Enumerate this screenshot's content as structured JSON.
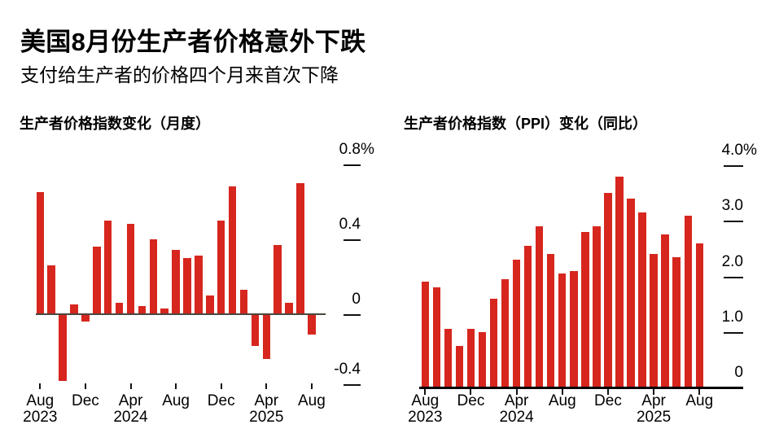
{
  "header": {
    "title": "美国8月份生产者价格意外下跌",
    "subtitle": "支付给生产者的价格四个月来首次下降"
  },
  "colors": {
    "bar": "#d6261e",
    "monthly_zero_axis": "#4a463f",
    "yoy_baseline": "#000000",
    "tick": "#111111",
    "text": "#000000",
    "background": "#ffffff"
  },
  "chart_data": [
    {
      "type": "bar",
      "title": "生产者价格指数变化（月度）",
      "unit": "%",
      "categories": [
        "Aug 2023",
        "Sep 2023",
        "Oct 2023",
        "Nov 2023",
        "Dec 2023",
        "Jan 2024",
        "Feb 2024",
        "Mar 2024",
        "Apr 2024",
        "May 2024",
        "Jun 2024",
        "Jul 2024",
        "Aug 2024",
        "Sep 2024",
        "Oct 2024",
        "Nov 2024",
        "Dec 2024",
        "Jan 2025",
        "Feb 2025",
        "Mar 2025",
        "Apr 2025",
        "May 2025",
        "Jun 2025",
        "Jul 2025",
        "Aug 2025"
      ],
      "values": [
        0.65,
        0.26,
        -0.36,
        0.05,
        -0.04,
        0.36,
        0.5,
        0.06,
        0.48,
        0.04,
        0.4,
        0.03,
        0.34,
        0.3,
        0.31,
        0.1,
        0.5,
        0.68,
        0.13,
        -0.17,
        -0.24,
        0.37,
        0.06,
        0.7,
        -0.11
      ],
      "ylim": [
        -0.5,
        0.9
      ],
      "grid": false,
      "legend": "none",
      "y_ticks": [
        {
          "label": "0.8%",
          "value": 0.8
        },
        {
          "label": "0.4",
          "value": 0.4
        },
        {
          "label": "0",
          "value": 0
        },
        {
          "label": "-0.4",
          "value": -0.4
        }
      ],
      "x_ticks": [
        {
          "index": 0,
          "month": "Aug",
          "year": "2023"
        },
        {
          "index": 4,
          "month": "Dec"
        },
        {
          "index": 8,
          "month": "Apr",
          "year": "2024"
        },
        {
          "index": 12,
          "month": "Aug"
        },
        {
          "index": 16,
          "month": "Dec"
        },
        {
          "index": 20,
          "month": "Apr",
          "year": "2025"
        },
        {
          "index": 24,
          "month": "Aug"
        }
      ]
    },
    {
      "type": "bar",
      "title": "生产者价格指数（PPI）变化（同比）",
      "unit": "%",
      "categories": [
        "Aug 2023",
        "Sep 2023",
        "Oct 2023",
        "Nov 2023",
        "Dec 2023",
        "Jan 2024",
        "Feb 2024",
        "Mar 2024",
        "Apr 2024",
        "May 2024",
        "Jun 2024",
        "Jul 2024",
        "Aug 2024",
        "Sep 2024",
        "Oct 2024",
        "Nov 2024",
        "Dec 2024",
        "Jan 2025",
        "Feb 2025",
        "Mar 2025",
        "Apr 2025",
        "May 2025",
        "Jun 2025",
        "Jul 2025",
        "Aug 2025"
      ],
      "values": [
        1.9,
        1.8,
        1.05,
        0.75,
        1.05,
        1.0,
        1.6,
        1.95,
        2.3,
        2.55,
        2.9,
        2.4,
        2.05,
        2.1,
        2.8,
        2.9,
        3.5,
        3.8,
        3.4,
        3.15,
        2.4,
        2.75,
        2.35,
        3.1,
        2.6
      ],
      "ylim": [
        0,
        4.0
      ],
      "grid": false,
      "legend": "none",
      "y_ticks": [
        {
          "label": "4.0%",
          "value": 4.0
        },
        {
          "label": "3.0",
          "value": 3.0
        },
        {
          "label": "2.0",
          "value": 2.0
        },
        {
          "label": "1.0",
          "value": 1.0
        },
        {
          "label": "0",
          "value": 0
        }
      ],
      "x_ticks": [
        {
          "index": 0,
          "month": "Aug",
          "year": "2023"
        },
        {
          "index": 4,
          "month": "Dec"
        },
        {
          "index": 8,
          "month": "Apr",
          "year": "2024"
        },
        {
          "index": 12,
          "month": "Aug"
        },
        {
          "index": 16,
          "month": "Dec"
        },
        {
          "index": 20,
          "month": "Apr",
          "year": "2025"
        },
        {
          "index": 24,
          "month": "Aug"
        }
      ]
    }
  ]
}
